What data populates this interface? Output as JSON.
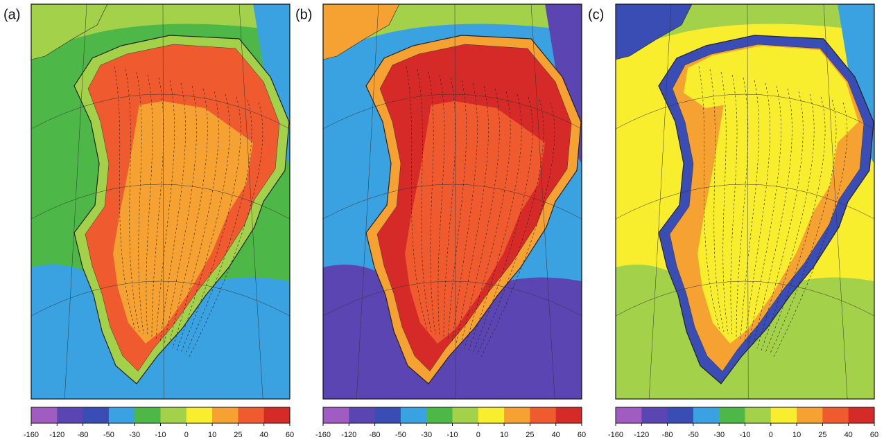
{
  "panels": [
    {
      "label": "(a)"
    },
    {
      "label": "(b)"
    },
    {
      "label": "(c)"
    }
  ],
  "colorbar": {
    "ticks": [
      -160,
      -120,
      -80,
      -50,
      -30,
      -10,
      0,
      10,
      25,
      40,
      60
    ],
    "colors": [
      "#a05cc0",
      "#5b45b3",
      "#3a4db5",
      "#3ba2e2",
      "#4db848",
      "#a3d24a",
      "#f8ee2e",
      "#f6a232",
      "#ef5a2f",
      "#d62a28"
    ]
  }
}
